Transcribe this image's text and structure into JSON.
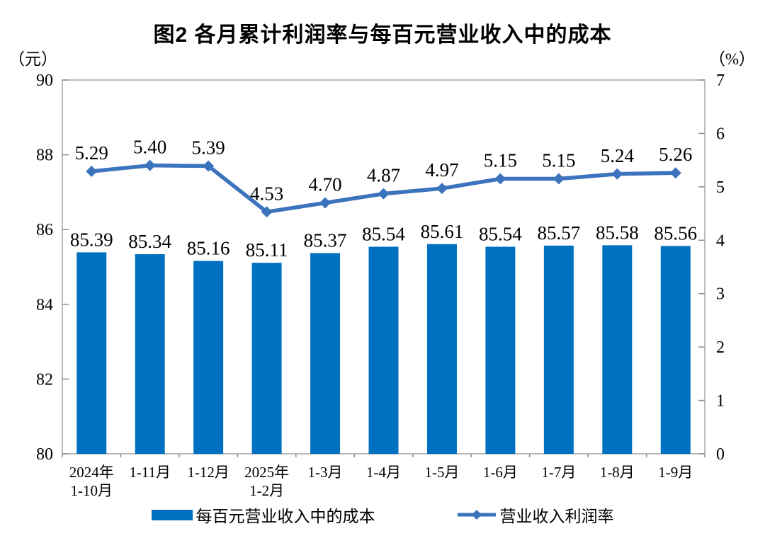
{
  "title": "图2 各月累计利润率与每百元营业收入中的成本",
  "colors": {
    "bar": "#0070C0",
    "line": "#3B73BC",
    "plot_border": "#A6A6A6",
    "axis_line": "#8C8C8C",
    "text": "#000000"
  },
  "legend": {
    "items": [
      {
        "label": "每百元营业收入中的成本",
        "type": "bar"
      },
      {
        "label": "营业收入利润率",
        "type": "line"
      }
    ]
  },
  "chart_data": {
    "type": "bar",
    "subtype": "combo bar+line, dual axis",
    "title": "图2 各月累计利润率与每百元营业收入中的成本",
    "categories": [
      [
        "2024年",
        "1-10月"
      ],
      [
        "1-11月"
      ],
      [
        "1-12月"
      ],
      [
        "2025年",
        "1-2月"
      ],
      [
        "1-3月"
      ],
      [
        "1-4月"
      ],
      [
        "1-5月"
      ],
      [
        "1-6月"
      ],
      [
        "1-7月"
      ],
      [
        "1-8月"
      ],
      [
        "1-9月"
      ]
    ],
    "series": [
      {
        "name": "每百元营业收入中的成本",
        "type": "bar",
        "axis": "left",
        "color": "#0070C0",
        "values": [
          85.39,
          85.34,
          85.16,
          85.11,
          85.37,
          85.54,
          85.61,
          85.54,
          85.57,
          85.58,
          85.56
        ]
      },
      {
        "name": "营业收入利润率",
        "type": "line",
        "axis": "right",
        "color": "#3B73BC",
        "values": [
          5.29,
          5.4,
          5.39,
          4.53,
          4.7,
          4.87,
          4.97,
          5.15,
          5.15,
          5.24,
          5.26
        ]
      }
    ],
    "left_axis": {
      "unit": "（元）",
      "min": 80,
      "max": 90,
      "ticks": [
        80,
        82,
        84,
        86,
        88,
        90
      ]
    },
    "right_axis": {
      "unit": "（%）",
      "min": 0,
      "max": 7,
      "ticks": [
        0,
        1,
        2,
        3,
        4,
        5,
        6,
        7
      ]
    },
    "grid": false,
    "data_labels": true,
    "label_decimals": 2,
    "legend_position": "bottom"
  }
}
